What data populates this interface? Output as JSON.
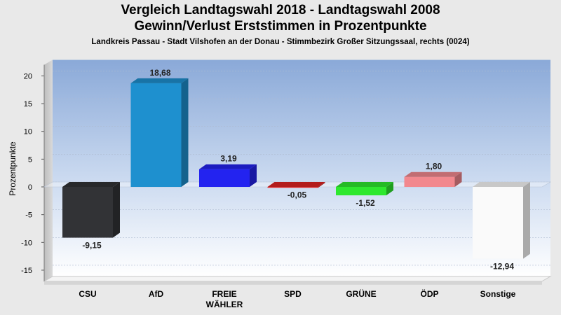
{
  "chart_data": {
    "type": "bar",
    "title": "Vergleich Landtagswahl 2018 - Landtagswahl 2008",
    "subtitle": "Gewinn/Verlust Erststimmen in Prozentpunkte",
    "caption": "Landkreis Passau - Stadt Vilshofen an der Donau - Stimmbezirk Großer Sitzungssaal, rechts (0024)",
    "ylabel": "Prozentpunkte",
    "xlabel": "",
    "ylim": [
      -17,
      22
    ],
    "yticks": [
      -15,
      -10,
      -5,
      0,
      5,
      10,
      15,
      20
    ],
    "ytick_labels": [
      "-15",
      "-10",
      "-5",
      "0",
      "5",
      "10",
      "15",
      "20"
    ],
    "grid": true,
    "legend": "none",
    "categories": [
      "CSU",
      "AfD",
      "FREIE WÄHLER",
      "SPD",
      "GRÜNE",
      "ÖDP",
      "Sonstige"
    ],
    "values": [
      -9.15,
      18.68,
      3.19,
      -0.05,
      -1.52,
      1.8,
      -12.94
    ],
    "value_labels": [
      "-9,15",
      "18,68",
      "3,19",
      "-0,05",
      "-1,52",
      "1,80",
      "-12,94"
    ],
    "colors": [
      "#323336",
      "#1e90cf",
      "#2323f0",
      "#e02323",
      "#2ee82e",
      "#f2888e",
      "#fafafa"
    ]
  }
}
